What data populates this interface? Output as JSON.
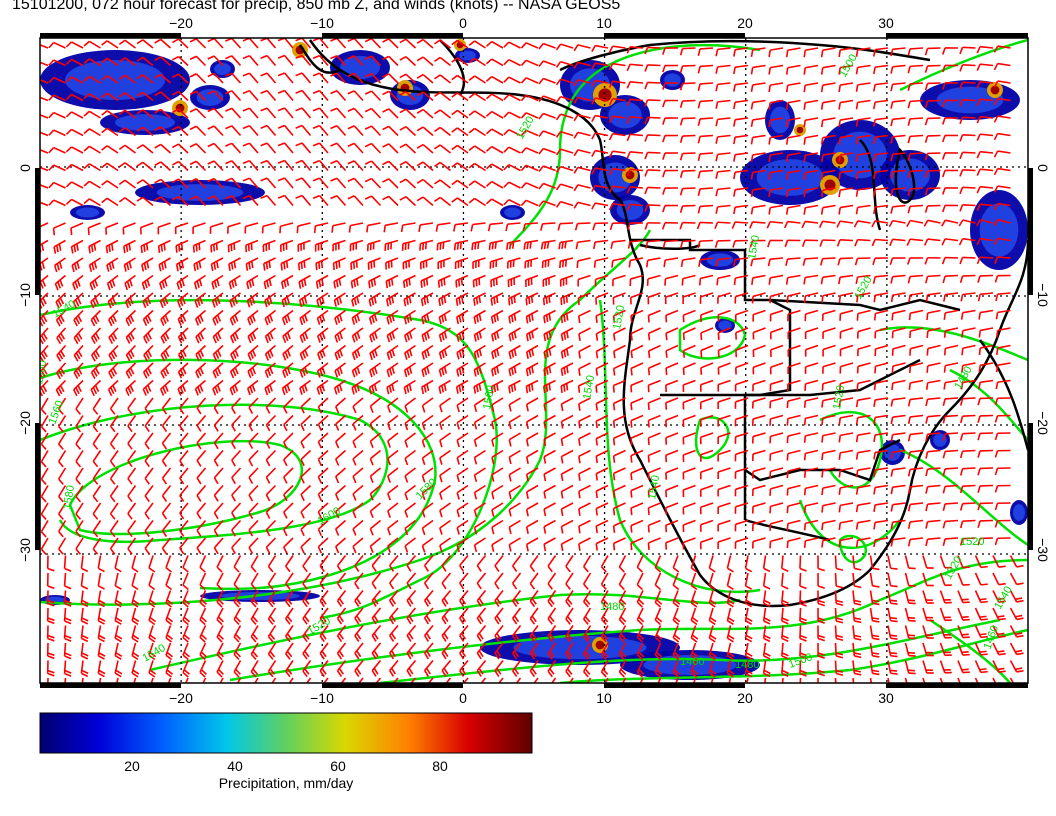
{
  "title": "15101200, 072 hour forecast for precip, 850 mb Z, and winds (knots) -- NASA GEOS5",
  "map": {
    "lon_range": [
      -30,
      40
    ],
    "lat_range": [
      -40,
      10
    ],
    "lon_ticks": [
      "−20",
      "−10",
      "0",
      "10",
      "20",
      "30"
    ],
    "lat_ticks": [
      "0",
      "−10",
      "−20",
      "−30"
    ],
    "lat_ticks_right": [
      "0",
      "−10",
      "−20",
      "−30"
    ],
    "grid": "dotted",
    "wind_barb_color": "#ff0000",
    "contour_color": "#00e000",
    "coastline_color": "#000000",
    "contour_labels": [
      "1500",
      "1520",
      "1540",
      "1560",
      "1560",
      "1580",
      "1600",
      "1580",
      "1560",
      "1540",
      "1520",
      "1540",
      "1520",
      "1480",
      "1520",
      "1540",
      "1460",
      "1480",
      "1500",
      "1460",
      "1480",
      "1520",
      "1540",
      "1540",
      "1520",
      "1520"
    ]
  },
  "colorbar": {
    "title": "Precipitation, mm/day",
    "ticks": [
      "20",
      "40",
      "60",
      "80"
    ],
    "colors": [
      "#000080",
      "#0000ff",
      "#0080ff",
      "#00e0e0",
      "#60e060",
      "#e0e000",
      "#ff8000",
      "#e00000",
      "#800000"
    ]
  }
}
